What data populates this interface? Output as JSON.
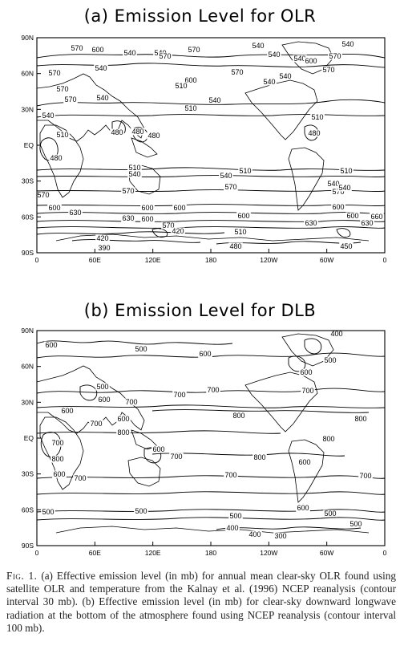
{
  "panels": [
    {
      "id": "a",
      "title": "(a) Emission Level for OLR",
      "lat_ticks": [
        "90N",
        "60N",
        "30N",
        "EQ",
        "30S",
        "60S",
        "90S"
      ],
      "lon_ticks": [
        "0",
        "60E",
        "120E",
        "180",
        "120W",
        "60W",
        "0"
      ],
      "contour_labels": [
        {
          "t": "570"
        },
        {
          "t": "600"
        },
        {
          "t": "540"
        },
        {
          "t": "540"
        },
        {
          "t": "570"
        },
        {
          "t": "540"
        },
        {
          "t": "540"
        },
        {
          "t": "540"
        },
        {
          "t": "570"
        },
        {
          "t": "540"
        },
        {
          "t": "570"
        },
        {
          "t": "570"
        },
        {
          "t": "600"
        },
        {
          "t": "570"
        },
        {
          "t": "540"
        },
        {
          "t": "600"
        },
        {
          "t": "570"
        },
        {
          "t": "540"
        },
        {
          "t": "570"
        },
        {
          "t": "570"
        },
        {
          "t": "540"
        },
        {
          "t": "510"
        },
        {
          "t": "540"
        },
        {
          "t": "540"
        },
        {
          "t": "510"
        },
        {
          "t": "510"
        },
        {
          "t": "540"
        },
        {
          "t": "510"
        },
        {
          "t": "480"
        },
        {
          "t": "480"
        },
        {
          "t": "480"
        },
        {
          "t": "480"
        },
        {
          "t": "480"
        },
        {
          "t": "510"
        },
        {
          "t": "540"
        },
        {
          "t": "540"
        },
        {
          "t": "510"
        },
        {
          "t": "570"
        },
        {
          "t": "570"
        },
        {
          "t": "510"
        },
        {
          "t": "540"
        },
        {
          "t": "570"
        },
        {
          "t": "600"
        },
        {
          "t": "630"
        },
        {
          "t": "600"
        },
        {
          "t": "600"
        },
        {
          "t": "600"
        },
        {
          "t": "600"
        },
        {
          "t": "630"
        },
        {
          "t": "600"
        },
        {
          "t": "570"
        },
        {
          "t": "630"
        },
        {
          "t": "660"
        },
        {
          "t": "600"
        },
        {
          "t": "630"
        },
        {
          "t": "420"
        },
        {
          "t": "390"
        },
        {
          "t": "420"
        },
        {
          "t": "510"
        },
        {
          "t": "480"
        },
        {
          "t": "450"
        },
        {
          "t": "540"
        },
        {
          "t": "570"
        }
      ]
    },
    {
      "id": "b",
      "title": "(b) Emission Level for DLB",
      "lat_ticks": [
        "90N",
        "60N",
        "30N",
        "EQ",
        "30S",
        "60S",
        "90S"
      ],
      "lon_ticks": [
        "0",
        "60E",
        "120E",
        "180",
        "120W",
        "60W",
        "0"
      ],
      "contour_labels": [
        {
          "t": "600"
        },
        {
          "t": "500"
        },
        {
          "t": "400"
        },
        {
          "t": "500"
        },
        {
          "t": "600"
        },
        {
          "t": "600"
        },
        {
          "t": "500"
        },
        {
          "t": "600"
        },
        {
          "t": "700"
        },
        {
          "t": "700"
        },
        {
          "t": "600"
        },
        {
          "t": "700"
        },
        {
          "t": "600"
        },
        {
          "t": "700"
        },
        {
          "t": "800"
        },
        {
          "t": "800"
        },
        {
          "t": "700"
        },
        {
          "t": "800"
        },
        {
          "t": "700"
        },
        {
          "t": "800"
        },
        {
          "t": "600"
        },
        {
          "t": "800"
        },
        {
          "t": "700"
        },
        {
          "t": "600"
        },
        {
          "t": "700"
        },
        {
          "t": "800"
        },
        {
          "t": "700"
        },
        {
          "t": "600"
        },
        {
          "t": "700"
        },
        {
          "t": "500"
        },
        {
          "t": "500"
        },
        {
          "t": "500"
        },
        {
          "t": "600"
        },
        {
          "t": "500"
        },
        {
          "t": "400"
        },
        {
          "t": "500"
        },
        {
          "t": "400"
        },
        {
          "t": "300"
        }
      ]
    }
  ],
  "caption": {
    "label": "Fig. 1.",
    "text": "(a) Effective emission level (in mb) for annual mean clear-sky OLR found using satellite OLR and temperature from the Kalnay et al. (1996) NCEP reanalysis (contour interval 30 mb). (b) Effective emission level (in mb) for clear-sky downward longwave radiation at the bottom of the atmosphere found using NCEP reanalysis (contour interval 100 mb)."
  }
}
